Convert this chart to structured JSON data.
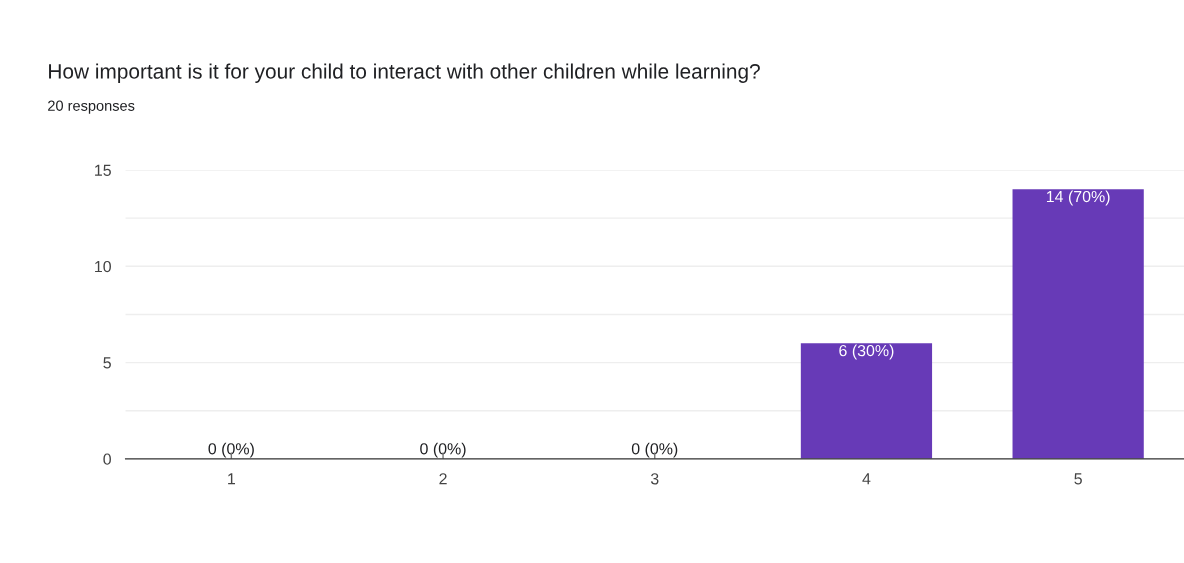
{
  "chart_data": {
    "type": "bar",
    "title": "How important is it for your child to interact with other children while learning?",
    "subtitle": "20 responses",
    "categories": [
      "1",
      "2",
      "3",
      "4",
      "5"
    ],
    "values": [
      0,
      0,
      0,
      6,
      14
    ],
    "value_labels": [
      "0 (0%)",
      "0 (0%)",
      "0 (0%)",
      "6 (30%)",
      "14 (70%)"
    ],
    "color": "#673ab7",
    "ylim": [
      0,
      15
    ],
    "yticks": [
      0,
      {
        "value": 2.5,
        "label": null
      },
      5,
      {
        "value": 7.5,
        "label": null
      },
      10,
      {
        "value": 12.5,
        "label": null
      },
      15
    ],
    "grid": "y"
  }
}
